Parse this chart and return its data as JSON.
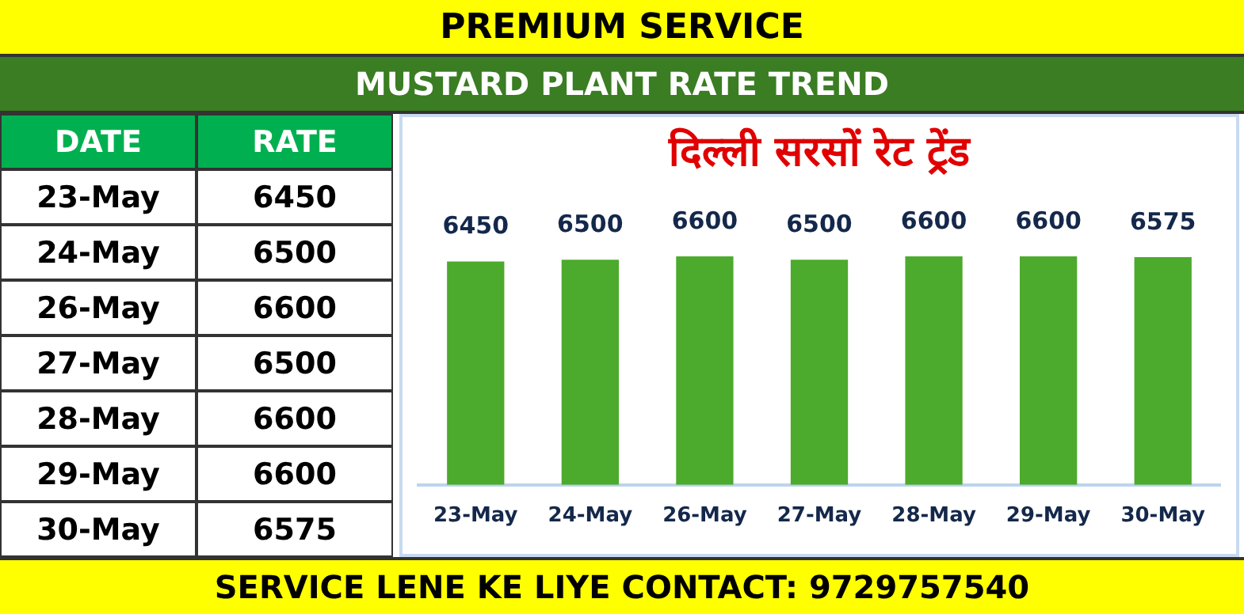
{
  "chart_data": {
    "type": "bar",
    "title": "दिल्ली सरसों रेट ट्रेंड",
    "subtitle": "MUSTARD PLANT RATE TREND",
    "annotations": [
      "PREMIUM SERVICE",
      "DATE",
      "RATE",
      "SERVICE LENE KE LIYE CONTACT: 9729757540"
    ],
    "categories": [
      "23-May",
      "24-May",
      "26-May",
      "27-May",
      "28-May",
      "29-May",
      "30-May"
    ],
    "values": [
      6450,
      6500,
      6600,
      6500,
      6600,
      6600,
      6575
    ],
    "value_labels": [
      "6450",
      "6500",
      "6600",
      "6500",
      "6600",
      "6600",
      "6575"
    ],
    "color": "#4caa2c",
    "grid": false,
    "legend": false
  }
}
